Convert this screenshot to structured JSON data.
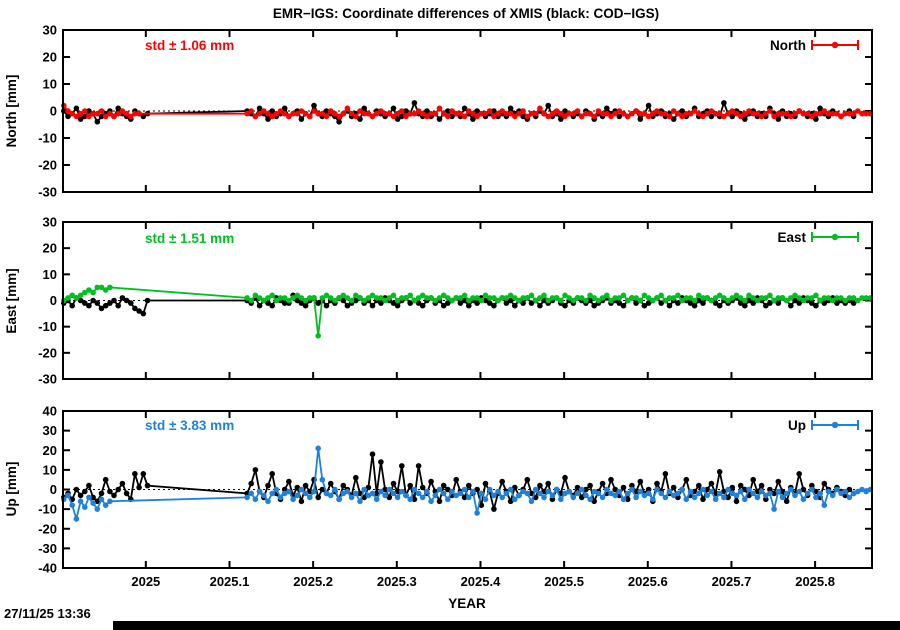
{
  "title": "EMR−IGS: Coordinate differences of XMIS (black: COD−IGS)",
  "timestamp": "27/11/25 13:36",
  "colors": {
    "north": "#ff0000",
    "east": "#00c020",
    "up": "#1e82dd",
    "reference": "#000000",
    "frame": "#000000",
    "background": "#ffffff",
    "bottom_bar": "#000000"
  },
  "xaxis": {
    "label": "YEAR",
    "tick_values": [
      2025.0,
      2025.1,
      2025.2,
      2025.3,
      2025.4,
      2025.5,
      2025.6,
      2025.7,
      2025.8
    ],
    "tick_labels": [
      "2025",
      "2025.1",
      "2025.2",
      "2025.3",
      "2025.4",
      "2025.5",
      "2025.6",
      "2025.7",
      "2025.8"
    ],
    "range": [
      2024.901,
      2025.868
    ]
  },
  "chart_data": [
    {
      "panel": "North",
      "type": "line+scatter",
      "ylabel": "North [mm]",
      "ylim": [
        -30,
        30
      ],
      "ytick_step": 10,
      "ytick_labels": [
        "30",
        "20",
        "10",
        "0",
        "-10",
        "-20",
        "-30"
      ],
      "std_label": "std ± 1.06 mm",
      "legend_label": "North",
      "accent": "#ff0000",
      "grid_zero_line": true,
      "series": [
        {
          "name": "COD-IGS (black)",
          "color": "#000000",
          "x0": 2024.902,
          "step": 0.005,
          "gap": [
            2025.004,
            2025.118
          ],
          "ys": "0,-2,-1,1,-3,-2,0,-1,-4,-2,-1,0,-2,1,-1,-2,-3,0,-1,-2,-1,0,-1,-2,1,-1,-3,0,-2,-1,1,-2,-1,0,-3,-1,-2,2,-1,-2,0,-1,-2,-4,-1,0,-2,-1,-3,1,-1,-2,0,-1,-2,-1,1,-3,-2,0,-1,3,-1,-2,0,-2,-1,-3,-1,0,-2,-1,-2,1,-1,-3,0,-1,-2,-1,0,-2,-1,-2,1,-1,0,-2,-3,-1,-2,0,-1,2,-2,-1,-3,0,-1,-2,-1,-2,0,-1,-3,-1,-2,1,-1,0,-2,-1,-2,-1,0,-3,-1,2,-2,-1,0,-2,-1,-3,-1,0,-2,-1,1,-2,-1,0,-2,-1,-2,3,-1,-2,0,-1,-3,-1,0,-2,-1,-2,1,-1,-3,0,-2,-1,-2,0,-1,-2,-1,-3,1,-1,-2,0,-1,-2,-1,0,-2"
        },
        {
          "name": "EMR-IGS (red)",
          "color": "#ff0000",
          "x0": 2024.902,
          "step": 0.005,
          "gap": [
            2024.994,
            2025.118
          ],
          "ys": "2,0,-1,-2,-1,0,-2,-1,-1,0,-2,-1,-2,-1,0,-1,-2,-1,-1,-1,0,-2,-1,0,-1,-2,-1,0,-1,-2,-1,-1,0,-1,-2,0,-1,-1,-2,0,-1,-2,-1,1,-1,-2,0,-1,-1,-2,-1,0,-1,-1,-2,-1,0,-2,-1,-1,0,-1,-2,-1,-1,1,-1,-2,0,-1,-1,-2,0,-1,-2,-1,-1,0,-2,-1,0,-1,-1,-2,-1,0,-2,-1,-1,1,-1,-2,-1,0,-1,-2,-1,-1,0,-2,-1,-1,-2,0,-1,-1,-2,-1,0,-1,-2,-1,0,-1,-1,-2,-1,0,-1,-1,-2,0,-1,-2,-1,-1,0,-1,-2,-1,0,-1,-1,-2,-1,0,-1,-2,-1,0,-1,-1,-2,-1,0,-2,-1,-1,-1,-2,-1,0,-1,-1,-2,-1,-1,0,-1,-1,-1,-2,-1,-1,-1,0,-1,-1,-1"
        }
      ]
    },
    {
      "panel": "East",
      "type": "line+scatter",
      "ylabel": "East [mm]",
      "ylim": [
        -30,
        30
      ],
      "ytick_step": 10,
      "ytick_labels": [
        "30",
        "20",
        "10",
        "0",
        "-10",
        "-20",
        "-30"
      ],
      "std_label": "std ± 1.51 mm",
      "legend_label": "East",
      "accent": "#00c020",
      "grid_zero_line": true,
      "series": [
        {
          "name": "COD-IGS (black)",
          "color": "#000000",
          "x0": 2024.902,
          "step": 0.005,
          "gap": [
            2025.004,
            2025.118
          ],
          "ys": "-1,0,-2,1,0,-1,-2,0,-1,-3,-2,-1,0,-2,1,0,-1,-3,-4,-5,0,0,-1,1,-2,0,-1,-2,1,0,-1,-1,2,0,-1,-2,0,1,-1,0,-2,0,-1,1,0,-2,-1,0,1,-1,0,-2,0,-1,1,0,-1,-2,0,1,-1,0,-1,-2,0,1,-1,0,-2,-1,0,1,-1,0,-2,0,-1,1,0,-1,-2,0,1,-1,0,-2,0,-1,1,-1,0,-2,0,-1,0,1,-1,-2,0,-1,1,0,-1,0,-2,-1,0,1,-1,0,-1,-2,0,1,-1,0,-2,-1,0,1,-1,0,-2,0,-1,1,0,-1,-2,0,-1,1,0,-1,-2,0,-1,0,1,-1,-2,0,-1,1,0,-2,-1,0,-1,1,0,-2,0,-1,1,0,-1,-2,0,-1,0,1,-1,0,-1,0,-1"
        },
        {
          "name": "EMR-IGS (green)",
          "color": "#00c020",
          "x0": 2024.902,
          "step": 0.005,
          "gap": [
            2024.959,
            2025.118
          ],
          "ys": "0,1,2,1,2,3,4,3,5,5,4,5,1,0,2,1,0,1,2,0,1,1,0,1,2,1,0,1,1,-13.5,1,2,1,0,1,2,1,0,2,1,0,1,2,1,1,0,1,2,0,1,1,2,0,1,2,1,1,0,1,2,1,0,1,1,2,0,1,1,0,2,1,1,0,1,1,2,1,0,1,1,2,0,1,2,0,1,1,0,2,1,0,1,1,0,2,1,0,1,2,0,1,1,2,0,1,1,0,2,1,0,1,2,0,1,1,2,0,1,1,0,2,1,1,0,1,2,1,0,1,2,1,0,2,1,0,1,1,2,0,1,1,0,1,2,1,0,1,1,2,0,1,1,0,1,1,0,1,1,0,1,1,1"
        }
      ]
    },
    {
      "panel": "Up",
      "type": "line+scatter",
      "ylabel": "Up [mm]",
      "ylim": [
        -40,
        40
      ],
      "ytick_step": 10,
      "ytick_labels": [
        "40",
        "30",
        "20",
        "10",
        "0",
        "-10",
        "-20",
        "-30",
        "-40"
      ],
      "std_label": "std ± 3.83 mm",
      "legend_label": "Up",
      "accent": "#1e82dd",
      "grid_zero_line": true,
      "series": [
        {
          "name": "COD-IGS (black)",
          "color": "#000000",
          "x0": 2024.902,
          "step": 0.005,
          "gap": [
            2025.004,
            2025.118
          ],
          "ys": "-4,-2,-5,0,-3,-1,2,-4,-6,-2,5,-1,-3,0,3,-2,-5,8,1,8,2,-2,3,10,-1,-4,2,8,-2,-5,0,4,-3,1,-6,2,-1,5,-4,0,-2,3,-1,-5,2,0,-3,6,-2,-4,1,18,-2,14,0,-4,3,-1,12,-3,2,-5,12,1,-2,4,-1,-6,2,0,-3,5,-1,-4,2,-2,0,-8,3,-1,-10,-2,4,-1,-6,1,-3,0,5,-2,-4,2,-1,3,-5,0,-2,6,-1,-3,1,-4,0,2,-6,-1,3,-2,5,0,-3,1,-5,2,-1,4,-2,0,-6,3,-1,8,-2,1,-4,0,5,-3,-1,2,-5,0,3,-2,9,-1,-4,1,-6,2,0,-3,5,-1,2,-5,0,-2,4,-1,-6,1,-2,8,0,-3,2,-1,-4,3,0,-2,1,-1,-3,0,-2"
        },
        {
          "name": "EMR-IGS (blue)",
          "color": "#1e82dd",
          "x0": 2024.902,
          "step": 0.005,
          "gap": [
            2024.959,
            2025.118
          ],
          "ys": "-5,-3,-8,-15,-6,-9,-4,-7,-10,-5,-8,-6,-4,-2,-5,-1,-3,-6,-2,0,-4,-2,-1,-5,-3,0,-2,-4,-1,21,5,-2,-3,0,-5,-2,-1,-4,-2,-6,0,-3,-2,-5,-1,-3,0,-2,-4,-1,-3,-5,0,-2,-4,-1,-6,-3,0,-2,-5,-1,-3,-2,0,-4,-1,-12,-2,-5,0,-3,-1,-4,-2,0,-5,-3,-1,-2,-6,0,-2,-4,-1,-3,0,-5,-2,-1,-4,-2,0,-3,-5,-1,-2,-4,0,-2,-3,-1,-5,-2,0,-4,-1,-3,-2,-5,0,-2,-4,-1,-3,-2,0,-5,-1,-4,-2,0,-3,-1,-5,-2,-4,0,-2,-3,-1,-5,0,-2,-4,-1,-3,-2,-10,-1,-4,-2,0,-3,-1,-5,-2,0,-4,-2,-8,-1,-3,0,-2,-1,-4,-2,-1,0,-1,0"
        }
      ]
    }
  ],
  "bottom_bar": {
    "present": true
  }
}
